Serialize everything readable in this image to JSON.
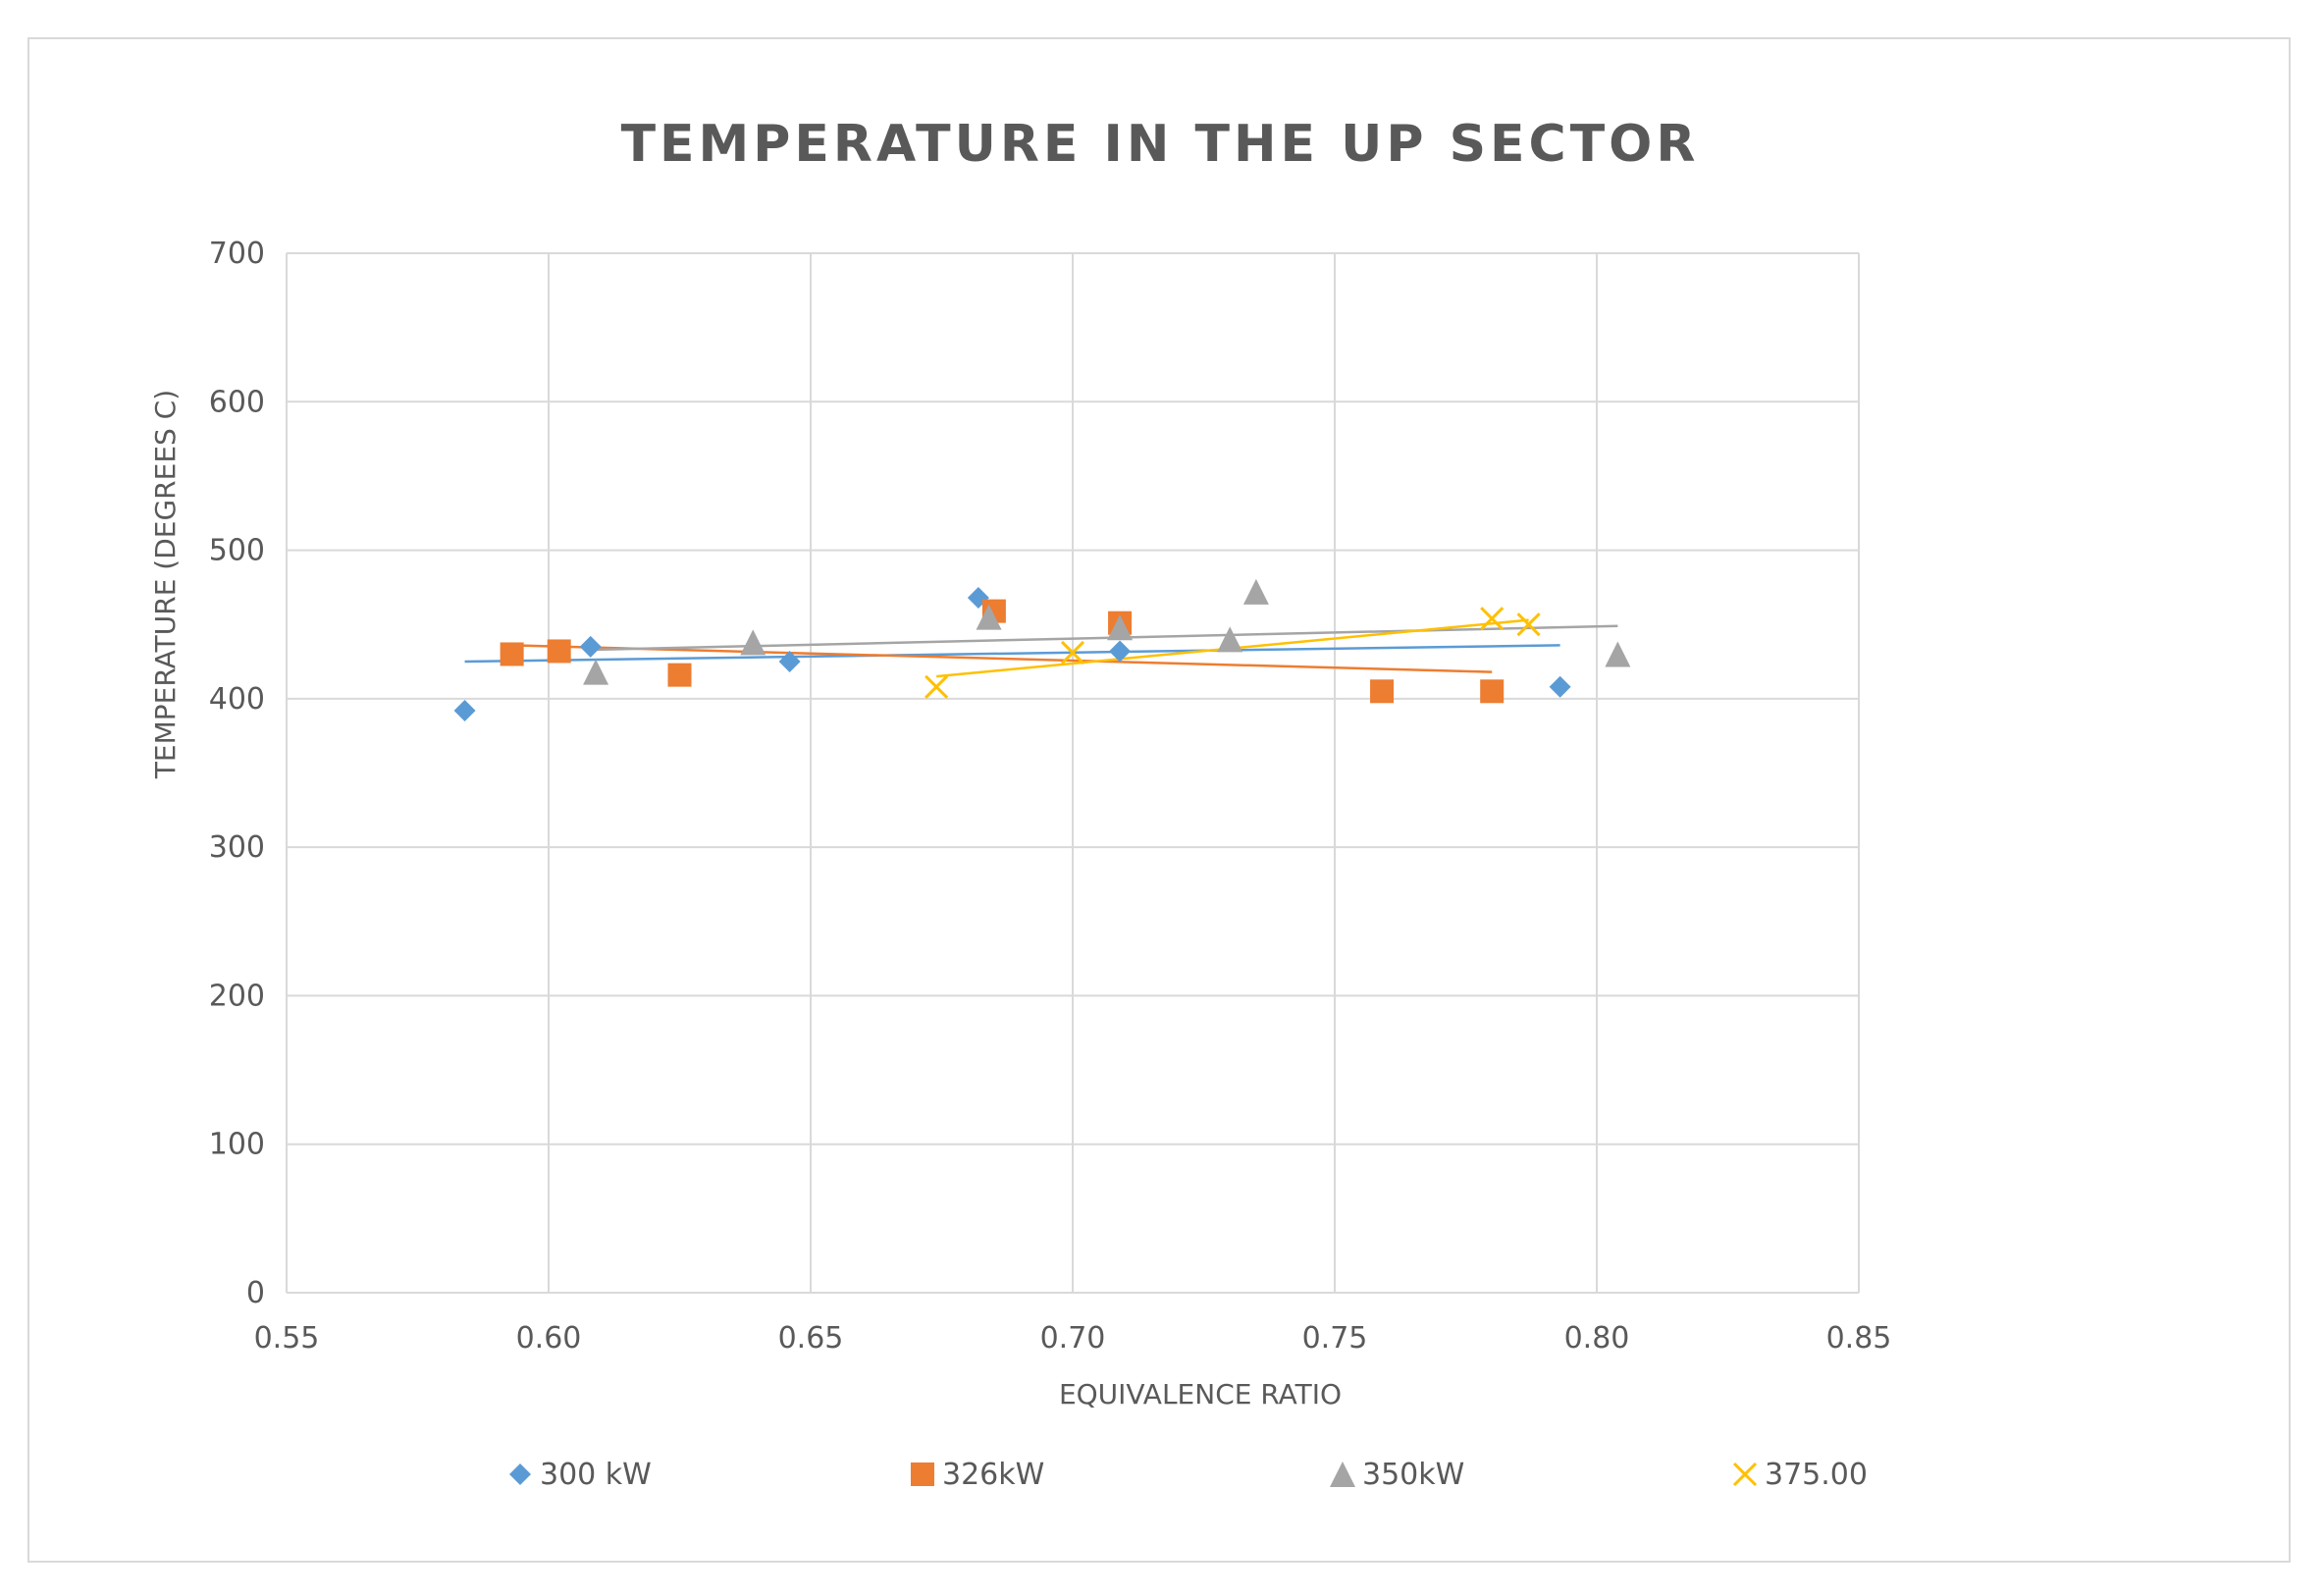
{
  "chart_data": {
    "type": "scatter",
    "title": "TEMPERATURE IN THE UP SECTOR",
    "xlabel": "EQUIVALENCE RATIO",
    "ylabel": "TEMPERATURE (DEGREES C)",
    "xlim": [
      0.55,
      0.85
    ],
    "ylim": [
      0,
      700
    ],
    "xticks": [
      "0.55",
      "0.60",
      "0.65",
      "0.70",
      "0.75",
      "0.80",
      "0.85"
    ],
    "xtick_values": [
      0.55,
      0.6,
      0.65,
      0.7,
      0.75,
      0.8,
      0.85
    ],
    "yticks": [
      "0",
      "100",
      "200",
      "300",
      "400",
      "500",
      "600",
      "700"
    ],
    "ytick_values": [
      0,
      100,
      200,
      300,
      400,
      500,
      600,
      700
    ],
    "grid": true,
    "legend_position": "bottom",
    "series": [
      {
        "name": "300 kW",
        "marker": "diamond",
        "color": "#5b9bd5",
        "points": [
          [
            0.584,
            392
          ],
          [
            0.608,
            435
          ],
          [
            0.646,
            425
          ],
          [
            0.682,
            468
          ],
          [
            0.709,
            432
          ],
          [
            0.793,
            408
          ]
        ],
        "trendline": [
          [
            0.584,
            425
          ],
          [
            0.793,
            436
          ]
        ]
      },
      {
        "name": "326kW",
        "marker": "square",
        "color": "#ed7d31",
        "points": [
          [
            0.593,
            430
          ],
          [
            0.602,
            432
          ],
          [
            0.625,
            416
          ],
          [
            0.685,
            459
          ],
          [
            0.709,
            451
          ],
          [
            0.759,
            405
          ],
          [
            0.78,
            405
          ]
        ],
        "trendline": [
          [
            0.593,
            436
          ],
          [
            0.78,
            418
          ]
        ]
      },
      {
        "name": "350kW",
        "marker": "triangle",
        "color": "#a5a5a5",
        "points": [
          [
            0.609,
            418
          ],
          [
            0.639,
            438
          ],
          [
            0.684,
            455
          ],
          [
            0.709,
            448
          ],
          [
            0.73,
            440
          ],
          [
            0.735,
            472
          ],
          [
            0.804,
            430
          ]
        ],
        "trendline": [
          [
            0.609,
            433
          ],
          [
            0.804,
            449
          ]
        ]
      },
      {
        "name": "375.00",
        "marker": "x",
        "color": "#ffc000",
        "points": [
          [
            0.674,
            408
          ],
          [
            0.7,
            431
          ],
          [
            0.78,
            454
          ],
          [
            0.787,
            450
          ]
        ],
        "trendline": [
          [
            0.674,
            415
          ],
          [
            0.787,
            453
          ]
        ]
      }
    ]
  }
}
